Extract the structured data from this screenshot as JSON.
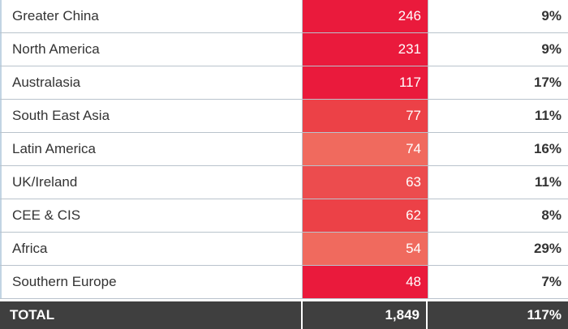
{
  "table": {
    "rows": [
      {
        "region": "Greater China",
        "value": "246",
        "pct": "9%",
        "color": "#ea1a3c"
      },
      {
        "region": "North America",
        "value": "231",
        "pct": "9%",
        "color": "#ea1a3c"
      },
      {
        "region": "Australasia",
        "value": "117",
        "pct": "17%",
        "color": "#ea1a3c"
      },
      {
        "region": "South East Asia",
        "value": "77",
        "pct": "11%",
        "color": "#ec4147"
      },
      {
        "region": "Latin America",
        "value": "74",
        "pct": "16%",
        "color": "#f06a5e"
      },
      {
        "region": "UK/Ireland",
        "value": "63",
        "pct": "11%",
        "color": "#ec4c4e"
      },
      {
        "region": "CEE & CIS",
        "value": "62",
        "pct": "8%",
        "color": "#ec4147"
      },
      {
        "region": "Africa",
        "value": "54",
        "pct": "29%",
        "color": "#f06a5e"
      },
      {
        "region": "Southern Europe",
        "value": "48",
        "pct": "7%",
        "color": "#ea1a3c"
      }
    ],
    "total": {
      "label": "TOTAL",
      "value": "1,849",
      "pct": "117%"
    }
  }
}
